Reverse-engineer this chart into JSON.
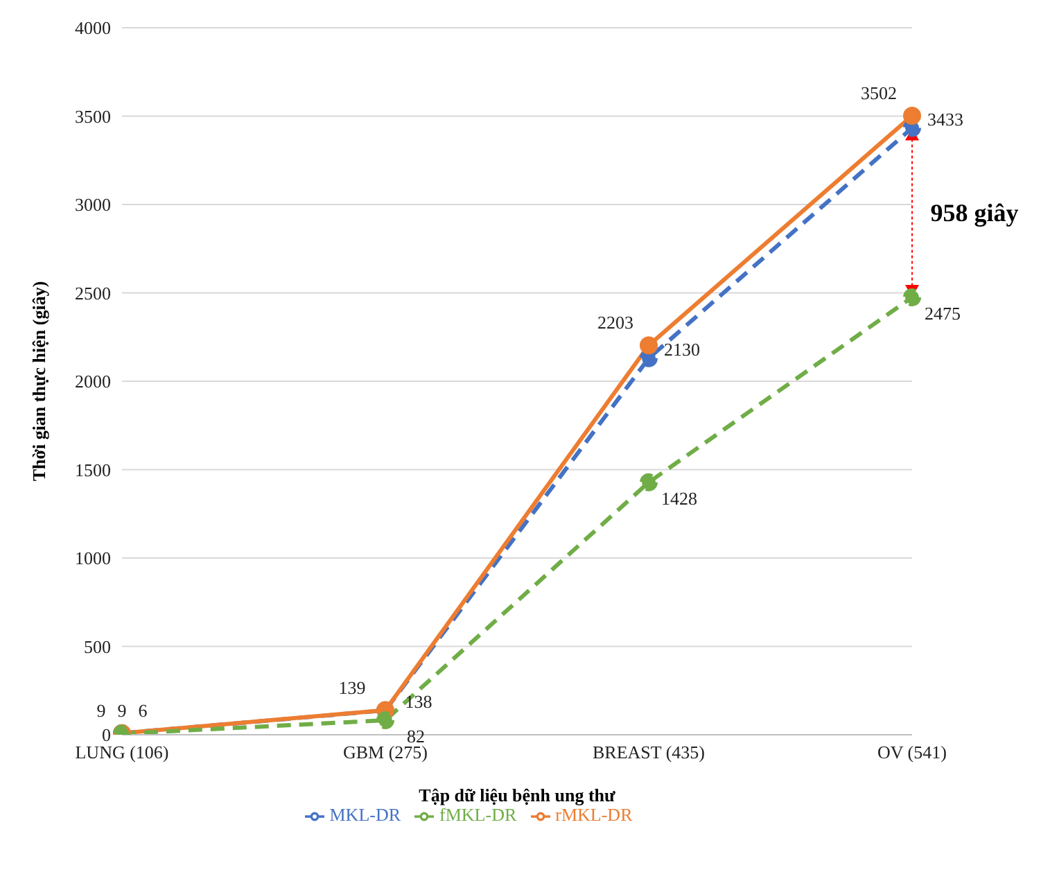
{
  "chart_data": {
    "type": "line",
    "xlabel": "Tập dữ liệu bệnh ung thư",
    "ylabel": "Thời gian thực hiện (giây)",
    "categories": [
      "LUNG (106)",
      "GBM (275)",
      "BREAST (435)",
      "OV (541)"
    ],
    "series": [
      {
        "name": "MKL-DR",
        "color": "#4472c4",
        "line_style": "dashed",
        "values": [
          9,
          138,
          2130,
          3433
        ]
      },
      {
        "name": "rMKL-DR",
        "color": "#ed7d31",
        "line_style": "solid",
        "values": [
          9,
          139,
          2203,
          3502
        ]
      },
      {
        "name": "fMKL-DR",
        "color": "#70ad47",
        "line_style": "dashed",
        "values": [
          6,
          82,
          1428,
          2475
        ]
      }
    ],
    "ylim": [
      0,
      4000
    ],
    "yticks": [
      0,
      500,
      1000,
      1500,
      2000,
      2500,
      3000,
      3500,
      4000
    ],
    "grid": "y",
    "legend": "bottom",
    "marker": "circle",
    "data_labels": true,
    "annotations": [
      "958 giây"
    ]
  }
}
